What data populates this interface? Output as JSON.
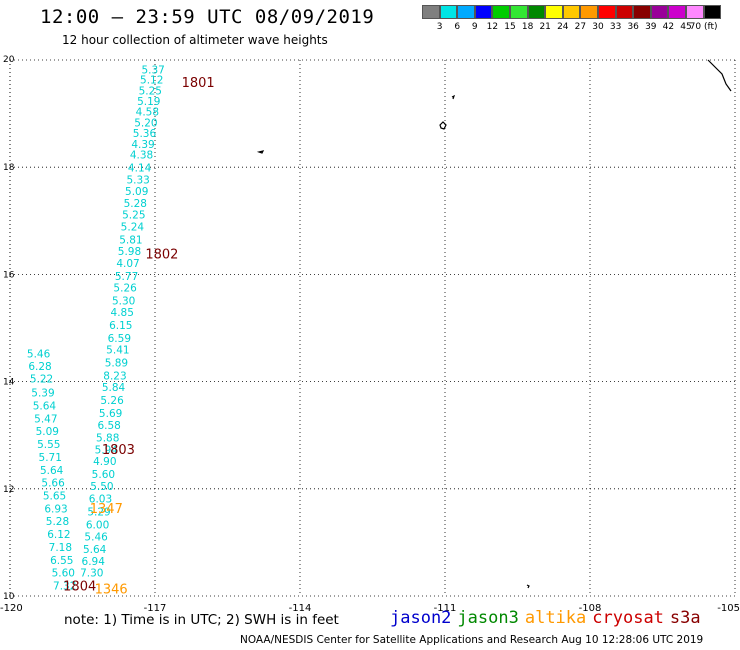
{
  "header": {
    "title": "12:00 – 23:59 UTC 08/09/2019",
    "subtitle": "12 hour collection of altimeter wave heights"
  },
  "legend": {
    "colors": [
      "#7f7f7f",
      "#00e5e5",
      "#00aaff",
      "#0000ff",
      "#00cc00",
      "#33e633",
      "#008800",
      "#ffff00",
      "#ffc800",
      "#ff9900",
      "#ff0000",
      "#cc0000",
      "#880000",
      "#990099",
      "#cc00cc",
      "#ff88ff",
      "#000000"
    ],
    "labels": [
      "3",
      "6",
      "9",
      "12",
      "15",
      "18",
      "21",
      "24",
      "27",
      "30",
      "33",
      "36",
      "39",
      "42",
      "45",
      "70 (ft)"
    ]
  },
  "map": {
    "lon_range": [
      -120,
      -105
    ],
    "lat_range": [
      10,
      20
    ],
    "x_ticks": [
      "-120",
      "-117",
      "-114",
      "-111",
      "-108",
      "-105"
    ],
    "y_ticks": [
      "20",
      "18",
      "16",
      "14",
      "12",
      "10"
    ],
    "grid": true
  },
  "chart_data": {
    "type": "scatter",
    "xlabel": "",
    "ylabel": "",
    "xlim": [
      -120,
      -105
    ],
    "ylim": [
      10,
      20
    ],
    "series": [
      {
        "name": "jason3",
        "color": "#00d0d0",
        "points": [
          {
            "lon": -117.28,
            "lat": 19.75,
            "v": "5.37"
          },
          {
            "lon": -117.31,
            "lat": 19.56,
            "v": "5.12"
          },
          {
            "lon": -117.34,
            "lat": 19.36,
            "v": "5.25"
          },
          {
            "lon": -117.37,
            "lat": 19.16,
            "v": "5.19"
          },
          {
            "lon": -117.4,
            "lat": 18.96,
            "v": "4.58"
          },
          {
            "lon": -117.43,
            "lat": 18.76,
            "v": "5.20"
          },
          {
            "lon": -117.46,
            "lat": 18.56,
            "v": "5.36"
          },
          {
            "lon": -117.49,
            "lat": 18.36,
            "v": "4.39"
          },
          {
            "lon": -117.52,
            "lat": 18.16,
            "v": "4.38"
          },
          {
            "lon": -117.56,
            "lat": 17.92,
            "v": "4.14"
          },
          {
            "lon": -117.59,
            "lat": 17.7,
            "v": "5.33"
          },
          {
            "lon": -117.62,
            "lat": 17.48,
            "v": "5.09"
          },
          {
            "lon": -117.65,
            "lat": 17.26,
            "v": "5.28"
          },
          {
            "lon": -117.68,
            "lat": 17.04,
            "v": "5.25"
          },
          {
            "lon": -117.71,
            "lat": 16.82,
            "v": "5.24"
          },
          {
            "lon": -117.74,
            "lat": 16.58,
            "v": "5.81"
          },
          {
            "lon": -117.77,
            "lat": 16.36,
            "v": "5.98"
          },
          {
            "lon": -117.8,
            "lat": 16.14,
            "v": "4.07"
          },
          {
            "lon": -117.83,
            "lat": 15.9,
            "v": "5.77"
          },
          {
            "lon": -117.86,
            "lat": 15.68,
            "v": "5.26"
          },
          {
            "lon": -117.89,
            "lat": 15.44,
            "v": "5.30"
          },
          {
            "lon": -117.92,
            "lat": 15.22,
            "v": "4.85"
          },
          {
            "lon": -117.95,
            "lat": 14.98,
            "v": "6.15"
          },
          {
            "lon": -117.98,
            "lat": 14.74,
            "v": "6.59"
          },
          {
            "lon": -118.01,
            "lat": 14.52,
            "v": "5.41"
          },
          {
            "lon": -118.04,
            "lat": 14.28,
            "v": "5.89"
          },
          {
            "lon": -118.07,
            "lat": 14.04,
            "v": "8.23"
          },
          {
            "lon": -118.1,
            "lat": 13.82,
            "v": "5.84"
          },
          {
            "lon": -118.13,
            "lat": 13.58,
            "v": "5.26"
          },
          {
            "lon": -118.16,
            "lat": 13.34,
            "v": "5.69"
          },
          {
            "lon": -118.19,
            "lat": 13.12,
            "v": "6.58"
          },
          {
            "lon": -118.22,
            "lat": 12.88,
            "v": "5.88"
          },
          {
            "lon": -118.25,
            "lat": 12.66,
            "v": "5.94"
          },
          {
            "lon": -118.28,
            "lat": 12.44,
            "v": "4.90"
          },
          {
            "lon": -118.31,
            "lat": 12.2,
            "v": "5.60"
          },
          {
            "lon": -118.34,
            "lat": 11.98,
            "v": "5.50"
          },
          {
            "lon": -118.37,
            "lat": 11.74,
            "v": "6.03"
          },
          {
            "lon": -118.4,
            "lat": 11.5,
            "v": "5.29"
          },
          {
            "lon": -118.43,
            "lat": 11.26,
            "v": "6.00"
          },
          {
            "lon": -118.46,
            "lat": 11.04,
            "v": "5.46"
          },
          {
            "lon": -118.49,
            "lat": 10.8,
            "v": "5.64"
          },
          {
            "lon": -118.52,
            "lat": 10.58,
            "v": "6.94"
          },
          {
            "lon": -118.55,
            "lat": 10.36,
            "v": "7.30"
          }
        ]
      },
      {
        "name": "jason3",
        "color": "#00d0d0",
        "points": [
          {
            "lon": -119.65,
            "lat": 14.45,
            "v": "5.46"
          },
          {
            "lon": -119.62,
            "lat": 14.22,
            "v": "6.28"
          },
          {
            "lon": -119.59,
            "lat": 13.98,
            "v": "5.22"
          },
          {
            "lon": -119.56,
            "lat": 13.72,
            "v": "5.39"
          },
          {
            "lon": -119.53,
            "lat": 13.48,
            "v": "5.64"
          },
          {
            "lon": -119.5,
            "lat": 13.24,
            "v": "5.47"
          },
          {
            "lon": -119.47,
            "lat": 13.0,
            "v": "5.09"
          },
          {
            "lon": -119.44,
            "lat": 12.76,
            "v": "5.55"
          },
          {
            "lon": -119.41,
            "lat": 12.52,
            "v": "5.71"
          },
          {
            "lon": -119.38,
            "lat": 12.28,
            "v": "5.64"
          },
          {
            "lon": -119.35,
            "lat": 12.04,
            "v": "5.66"
          },
          {
            "lon": -119.32,
            "lat": 11.8,
            "v": "5.65"
          },
          {
            "lon": -119.29,
            "lat": 11.56,
            "v": "6.93"
          },
          {
            "lon": -119.26,
            "lat": 11.32,
            "v": "5.28"
          },
          {
            "lon": -119.23,
            "lat": 11.08,
            "v": "6.12"
          },
          {
            "lon": -119.2,
            "lat": 10.84,
            "v": "7.18"
          },
          {
            "lon": -119.17,
            "lat": 10.6,
            "v": "6.55"
          },
          {
            "lon": -119.14,
            "lat": 10.36,
            "v": "5.60"
          },
          {
            "lon": -119.11,
            "lat": 10.12,
            "v": "7.32"
          }
        ]
      }
    ],
    "markers": [
      {
        "label": "1801",
        "color": "#7a0000",
        "lon": -116.45,
        "lat": 19.5
      },
      {
        "label": "1802",
        "color": "#7a0000",
        "lon": -117.2,
        "lat": 16.3
      },
      {
        "label": "1803",
        "color": "#7a0000",
        "lon": -118.1,
        "lat": 12.65
      },
      {
        "label": "1347",
        "color": "#ff9900",
        "lon": -118.35,
        "lat": 11.55
      },
      {
        "label": "1804",
        "color": "#7a0000",
        "lon": -118.9,
        "lat": 10.1
      },
      {
        "label": "1346",
        "color": "#ff9900",
        "lon": -118.25,
        "lat": 10.05
      }
    ]
  },
  "footer": {
    "note": "note:  1)  Time is in UTC;  2)  SWH is in feet",
    "credit": "NOAA/NESDIS Center for Satellite Applications and Research    Aug 10 12:28:06 UTC 2019",
    "satellites": [
      {
        "name": "jason2",
        "color": "#0000cc"
      },
      {
        "name": "jason3",
        "color": "#008800"
      },
      {
        "name": "altika",
        "color": "#ff9900"
      },
      {
        "name": "cryosat",
        "color": "#cc0000"
      },
      {
        "name": "s3a",
        "color": "#880000"
      }
    ]
  }
}
